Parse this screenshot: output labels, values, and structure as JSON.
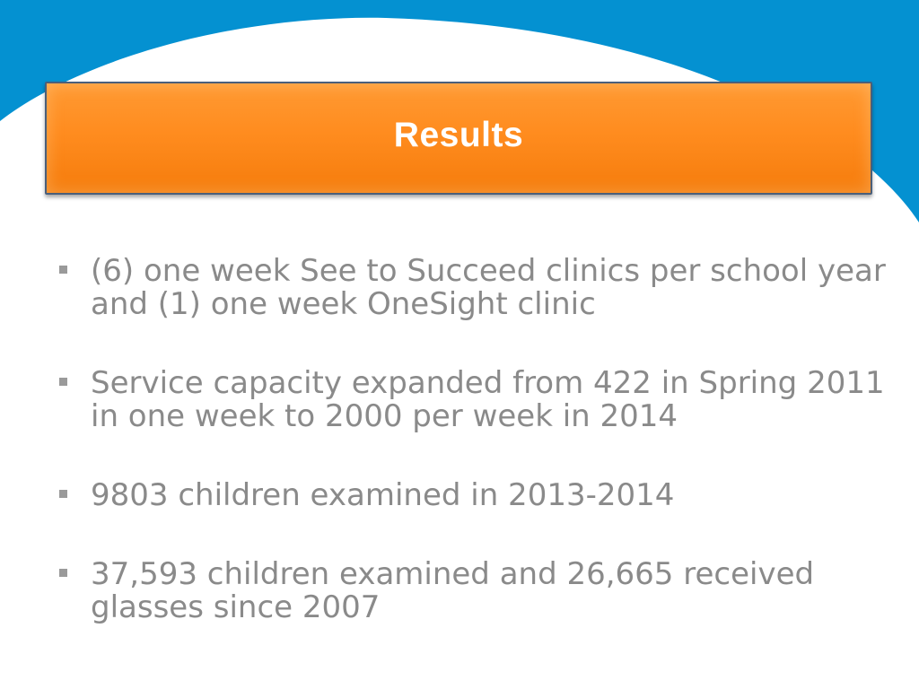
{
  "slide": {
    "title": "Results",
    "bullets": [
      {
        "text": "(6) one week See to Succeed clinics per school year and (1) one week OneSight clinic"
      },
      {
        "text": "Service capacity expanded from 422 in Spring 2011 in one week to 2000 per week in 2014"
      },
      {
        "text": "9803 children examined in 2013-2014"
      },
      {
        "text": "37,593 children examined and 26,665 received glasses since 2007"
      }
    ]
  },
  "colors": {
    "background_arc": "#0491d1",
    "title_box": "#ff8c1f",
    "title_border": "#4a5f7a",
    "title_text": "#ffffff",
    "body_text": "#8a8a8a"
  }
}
